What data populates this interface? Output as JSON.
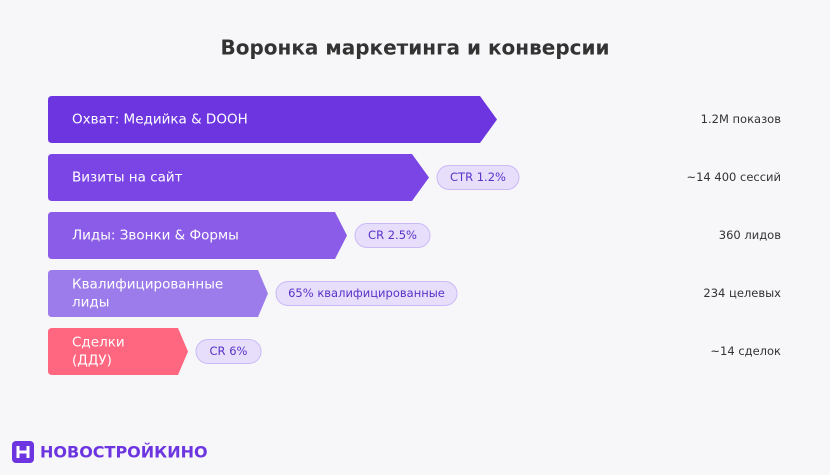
{
  "title": "Воронка маркетинга и конверсии",
  "stages": [
    {
      "label": [
        "Охват: Медийка & DOOH"
      ],
      "metric": "1.2M показов"
    },
    {
      "label": [
        "Визиты на сайт"
      ],
      "badge": "CTR 1.2%",
      "metric": "~14 400 сессий"
    },
    {
      "label": [
        "Лиды: Звонки & Формы"
      ],
      "badge": "CR 2.5%",
      "metric": "360 лидов"
    },
    {
      "label": [
        "Квалифицированные",
        "лиды"
      ],
      "badge": "65% квалифицированные",
      "metric": "234 целевых"
    },
    {
      "label": [
        "Сделки",
        "(ДДУ)"
      ],
      "badge": "CR 6%",
      "metric": "~14 сделок"
    }
  ],
  "logo": "НОВОСТРОЙКИНО"
}
